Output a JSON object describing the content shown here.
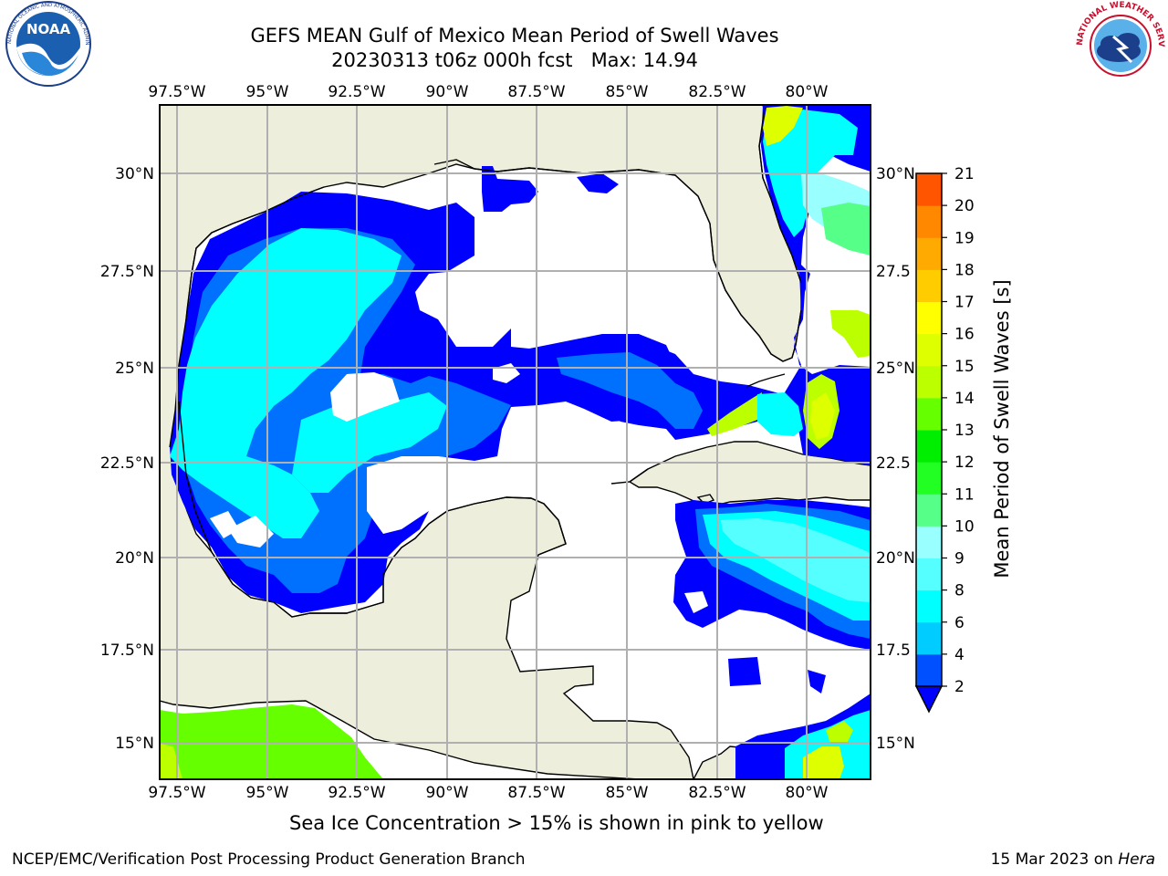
{
  "title": {
    "line1": "GEFS MEAN Gulf of Mexico Mean Period of Swell Waves",
    "line2": "20230313 t06z 000h fcst   Max: 14.94"
  },
  "caption": "Sea Ice Concentration > 15% is shown in pink to yellow",
  "footer": {
    "left": "NCEP/EMC/Verification Post Processing Product Generation Branch",
    "date": "15 Mar 2023 on ",
    "host": "Hera"
  },
  "logos": [
    {
      "name": "noaa-logo",
      "text": "NOAA",
      "ring": "NATIONAL OCEANIC AND ATMOSPHERIC ADMINISTRATION · U.S. DEPARTMENT OF COMMERCE"
    },
    {
      "name": "nws-logo",
      "ring": "NATIONAL WEATHER SERVICE"
    }
  ],
  "map": {
    "lon_labels": [
      "97.5°W",
      "95°W",
      "92.5°W",
      "90°W",
      "87.5°W",
      "85°W",
      "82.5°W",
      "80°W"
    ],
    "lat_labels_left": [
      "30°N",
      "27.5°N",
      "25°N",
      "22.5°N",
      "20°N",
      "17.5°N",
      "15°N"
    ],
    "lat_labels_right": [
      "30°N",
      "27.5",
      "25°N",
      "22.5",
      "20°N",
      "17.5",
      "15°N"
    ],
    "land_color": "#eeeedc",
    "ocean_color": "#ffffff",
    "grid_color": "#b0b0b0"
  },
  "colorbar": {
    "label": "Mean Period of Swell Waves [s]",
    "ticks": [
      "2",
      "4",
      "6",
      "8",
      "9",
      "10",
      "11",
      "12",
      "13",
      "14",
      "15",
      "16",
      "17",
      "18",
      "19",
      "20",
      "21"
    ],
    "colors": [
      "#0050ff",
      "#00ccff",
      "#00ffff",
      "#55ffff",
      "#99ffff",
      "#55ff88",
      "#22ff22",
      "#00ee00",
      "#66ff00",
      "#bbff00",
      "#ddff00",
      "#ffff00",
      "#ffcc00",
      "#ffaa00",
      "#ff8800",
      "#ff5500",
      "#ff3300",
      "#ff0000"
    ],
    "extend_color": "#0000ff"
  }
}
